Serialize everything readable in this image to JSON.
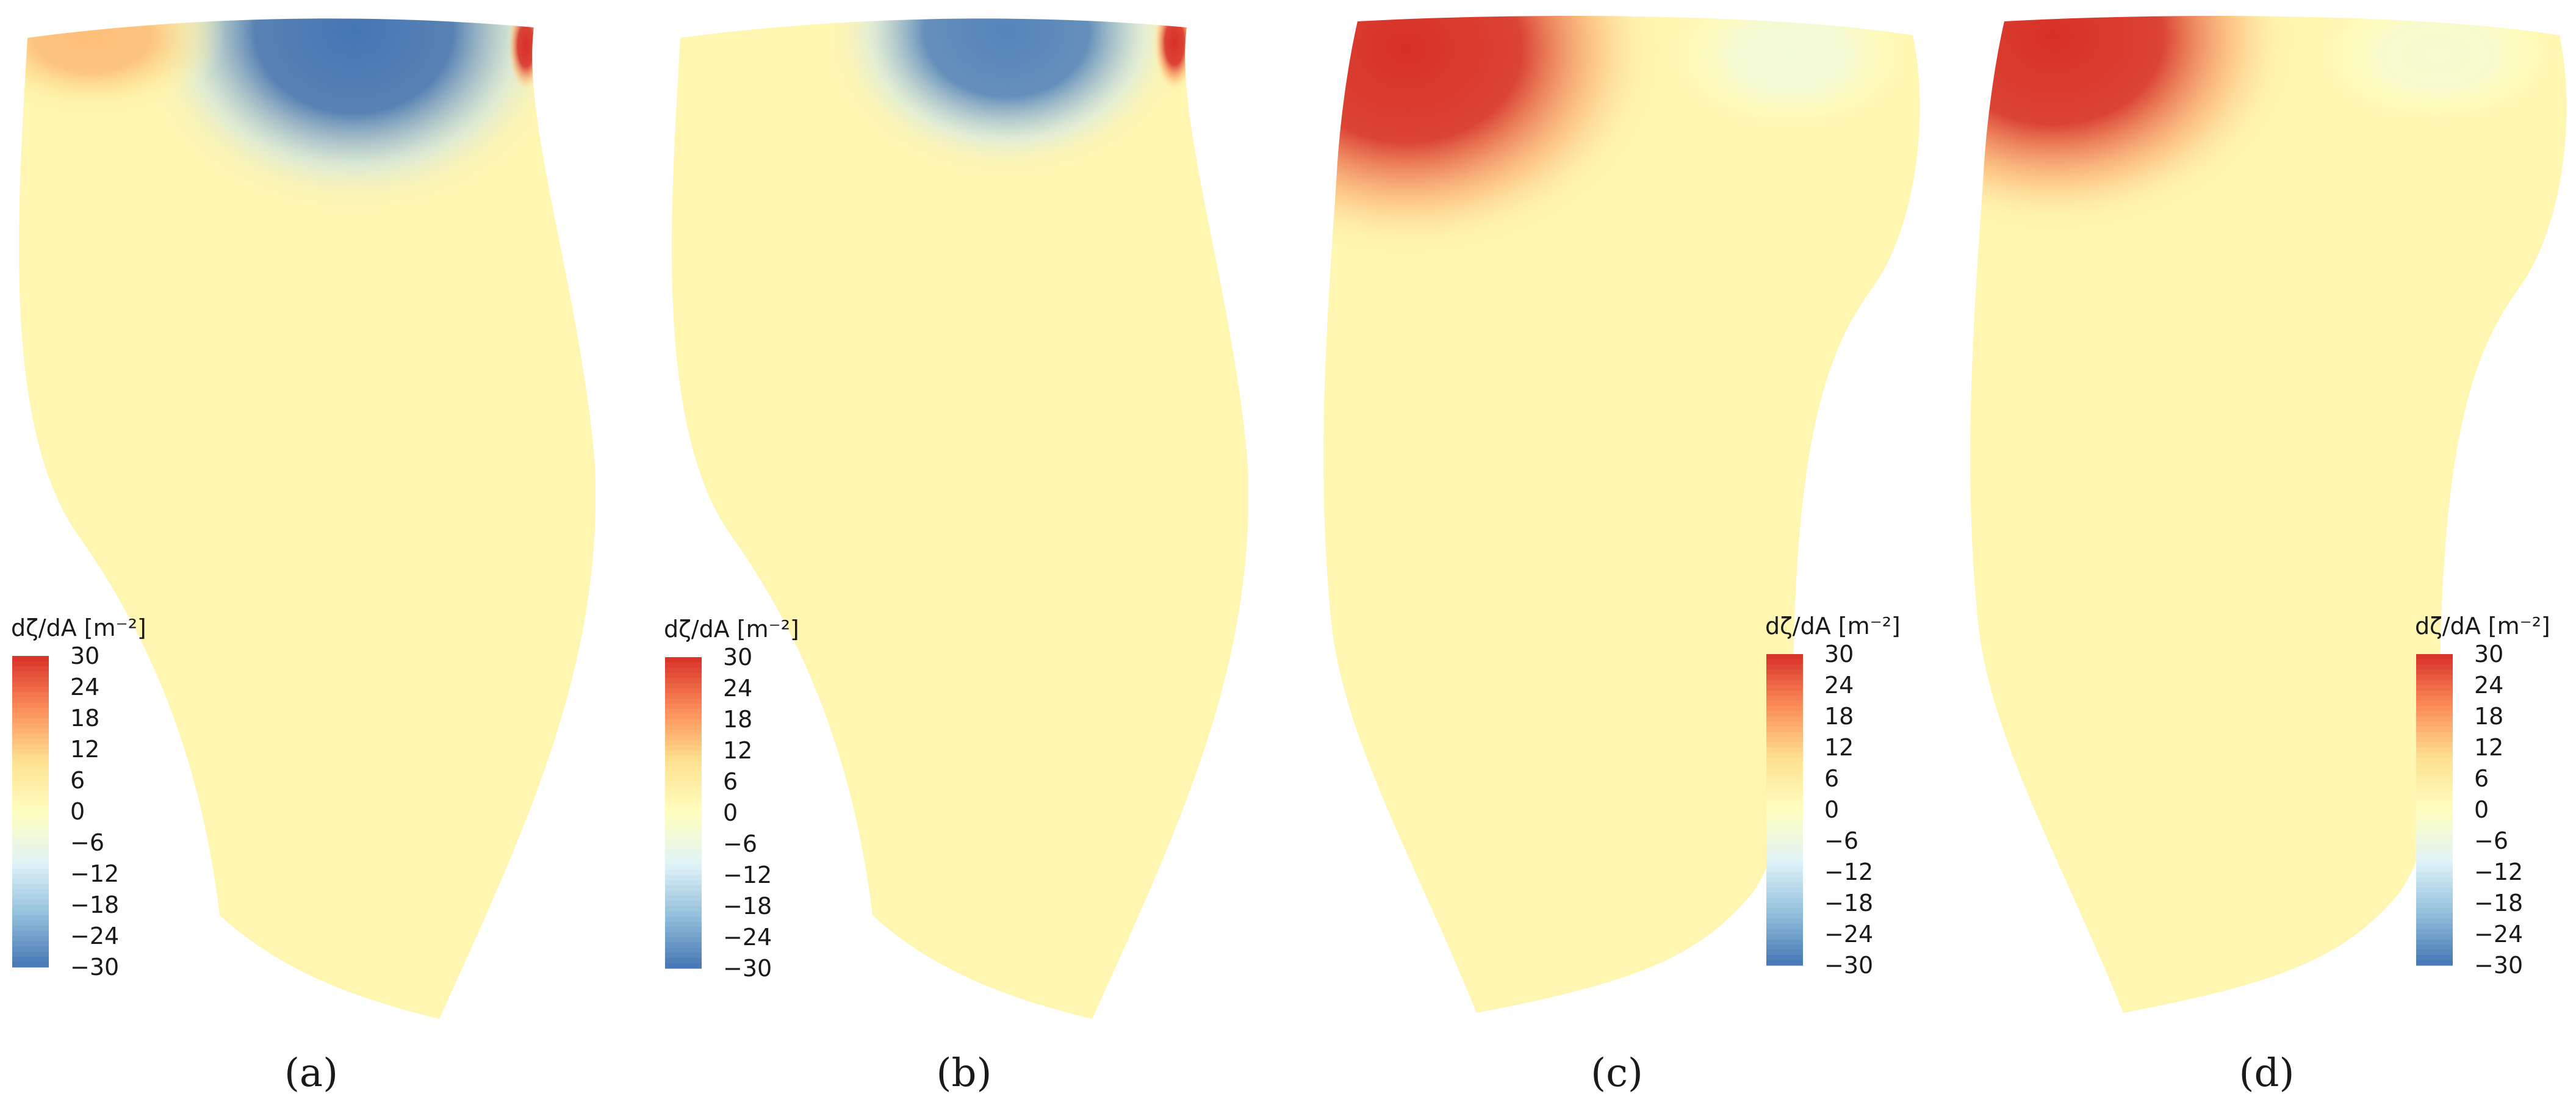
{
  "chart_data": [
    {
      "type": "heatmap",
      "panel_label": "(a)",
      "colorbar": {
        "title": "dζ/dA [m⁻²]",
        "min": -30,
        "max": 30,
        "ticks": [
          30,
          24,
          18,
          12,
          6,
          0,
          -6,
          -12,
          -18,
          -24,
          -30
        ],
        "tick_labels": [
          "30",
          "24",
          "18",
          "12",
          "6",
          "0",
          "−6",
          "−12",
          "−18",
          "−24",
          "−30"
        ]
      },
      "field_description": {
        "background_value": 3,
        "features": [
          {
            "location": "top-center",
            "value": -30
          },
          {
            "location": "top-left",
            "value": 14
          },
          {
            "location": "top-right edge",
            "value": 30
          }
        ]
      }
    },
    {
      "type": "heatmap",
      "panel_label": "(b)",
      "colorbar": {
        "title": "dζ/dA [m⁻²]",
        "min": -30,
        "max": 30,
        "ticks": [
          30,
          24,
          18,
          12,
          6,
          0,
          -6,
          -12,
          -18,
          -24,
          -30
        ],
        "tick_labels": [
          "30",
          "24",
          "18",
          "12",
          "6",
          "0",
          "−6",
          "−12",
          "−18",
          "−24",
          "−30"
        ]
      },
      "field_description": {
        "background_value": 3,
        "features": [
          {
            "location": "top-center",
            "value": -28
          },
          {
            "location": "top-right edge",
            "value": 30
          }
        ]
      }
    },
    {
      "type": "heatmap",
      "panel_label": "(c)",
      "colorbar": {
        "title": "dζ/dA [m⁻²]",
        "min": -30,
        "max": 30,
        "ticks": [
          30,
          24,
          18,
          12,
          6,
          0,
          -6,
          -12,
          -18,
          -24,
          -30
        ],
        "tick_labels": [
          "30",
          "24",
          "18",
          "12",
          "6",
          "0",
          "−6",
          "−12",
          "−18",
          "−24",
          "−30"
        ]
      },
      "field_description": {
        "background_value": 3,
        "features": [
          {
            "location": "top-left",
            "value": 30
          },
          {
            "location": "upper-right",
            "value": -4
          }
        ]
      }
    },
    {
      "type": "heatmap",
      "panel_label": "(d)",
      "colorbar": {
        "title": "dζ/dA [m⁻²]",
        "min": -30,
        "max": 30,
        "ticks": [
          30,
          24,
          18,
          12,
          6,
          0,
          -6,
          -12,
          -18,
          -24,
          -30
        ],
        "tick_labels": [
          "30",
          "24",
          "18",
          "12",
          "6",
          "0",
          "−6",
          "−12",
          "−18",
          "−24",
          "−30"
        ]
      },
      "field_description": {
        "background_value": 3,
        "features": [
          {
            "location": "top-left",
            "value": 30
          },
          {
            "location": "upper-right",
            "value": -3
          }
        ]
      }
    }
  ],
  "colormap": [
    "#4575b4",
    "#91bfdb",
    "#e0f3f8",
    "#ffffbf",
    "#fee090",
    "#fc8d59",
    "#d73027"
  ]
}
